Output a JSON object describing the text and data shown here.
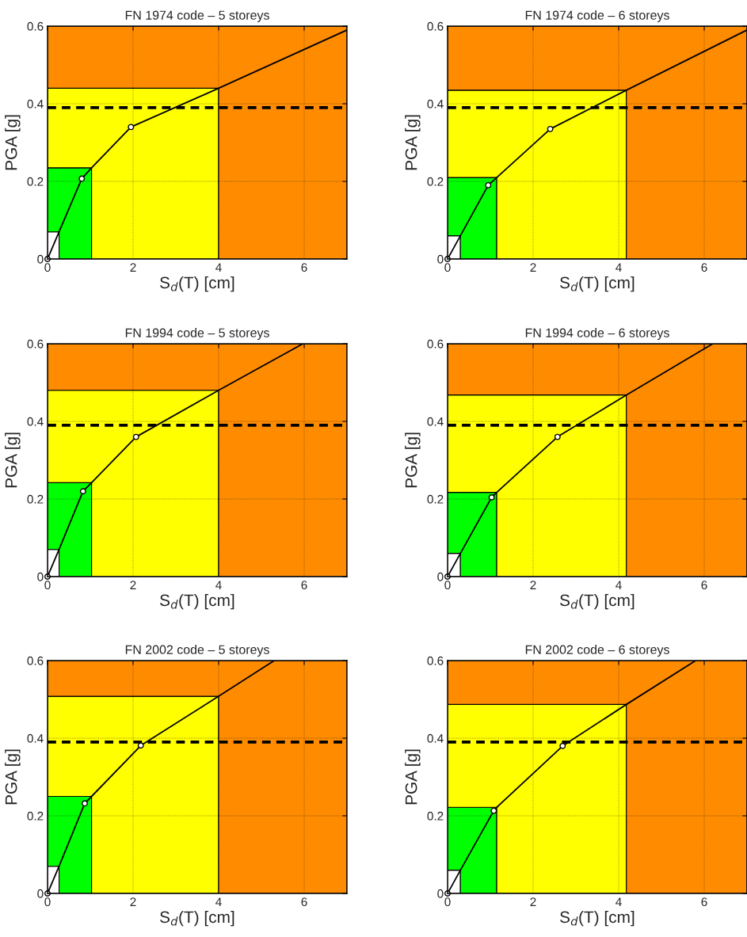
{
  "chart_data": [
    {
      "type": "area",
      "stacked": true,
      "title": "FN 1974 code – 5 storeys",
      "xlabel": "S$_{d}$(T) [cm]",
      "ylabel": "PGA [g]",
      "xlim": [
        0,
        7
      ],
      "ylim": [
        0,
        0.6
      ],
      "xticks": [
        0,
        2,
        4,
        6
      ],
      "yticks": [
        0,
        0.2,
        0.4,
        0.6
      ],
      "grid": true,
      "x": [
        0,
        0.27,
        0.27,
        1.03,
        1.03,
        4.0,
        4.0,
        7
      ],
      "series": [
        {
          "type": "area",
          "color": "#ffffff",
          "values": [
            0.07,
            0.07,
            0,
            0,
            0,
            0,
            0,
            0
          ]
        },
        {
          "type": "area",
          "color": "#00ff00",
          "values": [
            0.165,
            0.165,
            0.235,
            0.235,
            0,
            0,
            0,
            0
          ]
        },
        {
          "type": "area",
          "color": "#ffff00",
          "values": [
            0.205,
            0.205,
            0.205,
            0.205,
            0.44,
            0.44,
            0,
            0
          ]
        },
        {
          "type": "area",
          "color": "#ff8c00",
          "values": [
            0.16,
            0.16,
            0.16,
            0.16,
            0.16,
            0.16,
            0.6,
            0.6
          ]
        },
        {
          "type": "line",
          "color": "#000000",
          "marker": "none",
          "line_style": "solid",
          "x": [
            0,
            0.27,
            0.8,
            1.03,
            1.95,
            4.0,
            7
          ],
          "values": [
            0,
            0.07,
            0.207,
            0.235,
            0.34,
            0.44,
            0.59
          ]
        },
        {
          "type": "scatter",
          "color": "#ffffff",
          "marker": "circle",
          "x": [
            0,
            0.8,
            1.95
          ],
          "values": [
            0,
            0.207,
            0.34
          ]
        }
      ],
      "ref_lines": [
        {
          "axis": "y",
          "value": 0.39,
          "color": "#000000",
          "line_style": "dashed"
        }
      ]
    },
    {
      "type": "area",
      "stacked": true,
      "title": "FN 1974 code – 6 storeys",
      "xlabel": "S$_{d}$(T) [cm]",
      "ylabel": "PGA [g]",
      "xlim": [
        0,
        7
      ],
      "ylim": [
        0,
        0.6
      ],
      "xticks": [
        0,
        2,
        4,
        6
      ],
      "yticks": [
        0,
        0.2,
        0.4,
        0.6
      ],
      "grid": true,
      "x": [
        0,
        0.3,
        0.3,
        1.15,
        1.15,
        4.18,
        4.18,
        7
      ],
      "series": [
        {
          "type": "area",
          "color": "#ffffff",
          "values": [
            0.06,
            0.06,
            0,
            0,
            0,
            0,
            0,
            0
          ]
        },
        {
          "type": "area",
          "color": "#00ff00",
          "values": [
            0.15,
            0.15,
            0.21,
            0.21,
            0,
            0,
            0,
            0
          ]
        },
        {
          "type": "area",
          "color": "#ffff00",
          "values": [
            0.225,
            0.225,
            0.225,
            0.225,
            0.435,
            0.435,
            0,
            0
          ]
        },
        {
          "type": "area",
          "color": "#ff8c00",
          "values": [
            0.165,
            0.165,
            0.165,
            0.165,
            0.165,
            0.165,
            0.6,
            0.6
          ]
        },
        {
          "type": "line",
          "color": "#000000",
          "marker": "none",
          "line_style": "solid",
          "x": [
            0,
            0.3,
            0.95,
            1.15,
            2.4,
            4.18,
            7
          ],
          "values": [
            0,
            0.06,
            0.19,
            0.21,
            0.335,
            0.435,
            0.59
          ]
        },
        {
          "type": "scatter",
          "color": "#ffffff",
          "marker": "circle",
          "x": [
            0,
            0.95,
            2.4
          ],
          "values": [
            0,
            0.19,
            0.335
          ]
        }
      ],
      "ref_lines": [
        {
          "axis": "y",
          "value": 0.39,
          "color": "#000000",
          "line_style": "dashed"
        }
      ]
    },
    {
      "type": "area",
      "stacked": true,
      "title": "FN 1994 code – 5 storeys",
      "xlabel": "S$_{d}$(T) [cm]",
      "ylabel": "PGA [g]",
      "xlim": [
        0,
        7
      ],
      "ylim": [
        0,
        0.6
      ],
      "xticks": [
        0,
        2,
        4,
        6
      ],
      "yticks": [
        0,
        0.2,
        0.4,
        0.6
      ],
      "grid": true,
      "x": [
        0,
        0.27,
        0.27,
        1.03,
        1.03,
        4.0,
        4.0,
        7
      ],
      "series": [
        {
          "type": "area",
          "color": "#ffffff",
          "values": [
            0.07,
            0.07,
            0,
            0,
            0,
            0,
            0,
            0
          ]
        },
        {
          "type": "area",
          "color": "#00ff00",
          "values": [
            0.172,
            0.172,
            0.242,
            0.242,
            0,
            0,
            0,
            0
          ]
        },
        {
          "type": "area",
          "color": "#ffff00",
          "values": [
            0.238,
            0.238,
            0.238,
            0.238,
            0.48,
            0.48,
            0,
            0
          ]
        },
        {
          "type": "area",
          "color": "#ff8c00",
          "values": [
            0.12,
            0.12,
            0.12,
            0.12,
            0.12,
            0.12,
            0.6,
            0.6
          ]
        },
        {
          "type": "line",
          "color": "#000000",
          "marker": "none",
          "line_style": "solid",
          "x": [
            0,
            0.27,
            0.83,
            1.03,
            2.07,
            4.0,
            5.97
          ],
          "values": [
            0,
            0.07,
            0.22,
            0.242,
            0.36,
            0.48,
            0.6
          ]
        },
        {
          "type": "scatter",
          "color": "#ffffff",
          "marker": "circle",
          "x": [
            0,
            0.83,
            2.07
          ],
          "values": [
            0,
            0.22,
            0.36
          ]
        }
      ],
      "ref_lines": [
        {
          "axis": "y",
          "value": 0.39,
          "color": "#000000",
          "line_style": "dashed"
        }
      ]
    },
    {
      "type": "area",
      "stacked": true,
      "title": "FN 1994 code – 6 storeys",
      "xlabel": "S$_{d}$(T) [cm]",
      "ylabel": "PGA [g]",
      "xlim": [
        0,
        7
      ],
      "ylim": [
        0,
        0.6
      ],
      "xticks": [
        0,
        2,
        4,
        6
      ],
      "yticks": [
        0,
        0.2,
        0.4,
        0.6
      ],
      "grid": true,
      "x": [
        0,
        0.3,
        0.3,
        1.15,
        1.15,
        4.18,
        4.18,
        7
      ],
      "series": [
        {
          "type": "area",
          "color": "#ffffff",
          "values": [
            0.06,
            0.06,
            0,
            0,
            0,
            0,
            0,
            0
          ]
        },
        {
          "type": "area",
          "color": "#00ff00",
          "values": [
            0.157,
            0.157,
            0.217,
            0.217,
            0,
            0,
            0,
            0
          ]
        },
        {
          "type": "area",
          "color": "#ffff00",
          "values": [
            0.251,
            0.251,
            0.251,
            0.251,
            0.468,
            0.468,
            0,
            0
          ]
        },
        {
          "type": "area",
          "color": "#ff8c00",
          "values": [
            0.132,
            0.132,
            0.132,
            0.132,
            0.132,
            0.132,
            0.6,
            0.6
          ]
        },
        {
          "type": "line",
          "color": "#000000",
          "marker": "none",
          "line_style": "solid",
          "x": [
            0,
            0.3,
            1.03,
            1.15,
            2.57,
            4.18,
            6.2
          ],
          "values": [
            0,
            0.06,
            0.204,
            0.217,
            0.36,
            0.468,
            0.6
          ]
        },
        {
          "type": "scatter",
          "color": "#ffffff",
          "marker": "circle",
          "x": [
            0,
            1.03,
            2.57
          ],
          "values": [
            0,
            0.204,
            0.36
          ]
        }
      ],
      "ref_lines": [
        {
          "axis": "y",
          "value": 0.39,
          "color": "#000000",
          "line_style": "dashed"
        }
      ]
    },
    {
      "type": "area",
      "stacked": true,
      "title": "FN 2002 code – 5 storeys",
      "xlabel": "S$_{d}$(T) [cm]",
      "ylabel": "PGA [g]",
      "xlim": [
        0,
        7
      ],
      "ylim": [
        0,
        0.6
      ],
      "xticks": [
        0,
        2,
        4,
        6
      ],
      "yticks": [
        0,
        0.2,
        0.4,
        0.6
      ],
      "grid": true,
      "x": [
        0,
        0.27,
        0.27,
        1.03,
        1.03,
        4.0,
        4.0,
        7
      ],
      "series": [
        {
          "type": "area",
          "color": "#ffffff",
          "values": [
            0.07,
            0.07,
            0,
            0,
            0,
            0,
            0,
            0
          ]
        },
        {
          "type": "area",
          "color": "#00ff00",
          "values": [
            0.18,
            0.18,
            0.25,
            0.25,
            0,
            0,
            0,
            0
          ]
        },
        {
          "type": "area",
          "color": "#ffff00",
          "values": [
            0.258,
            0.258,
            0.258,
            0.258,
            0.508,
            0.508,
            0,
            0
          ]
        },
        {
          "type": "area",
          "color": "#ff8c00",
          "values": [
            0.092,
            0.092,
            0.092,
            0.092,
            0.092,
            0.092,
            0.6,
            0.6
          ]
        },
        {
          "type": "line",
          "color": "#000000",
          "marker": "none",
          "line_style": "solid",
          "x": [
            0,
            0.27,
            0.87,
            1.03,
            2.18,
            4.0,
            5.3
          ],
          "values": [
            0,
            0.07,
            0.232,
            0.25,
            0.381,
            0.508,
            0.6
          ]
        },
        {
          "type": "scatter",
          "color": "#ffffff",
          "marker": "circle",
          "x": [
            0,
            0.87,
            2.18
          ],
          "values": [
            0,
            0.232,
            0.381
          ]
        }
      ],
      "ref_lines": [
        {
          "axis": "y",
          "value": 0.39,
          "color": "#000000",
          "line_style": "dashed"
        }
      ]
    },
    {
      "type": "area",
      "stacked": true,
      "title": "FN 2002 code – 6 storeys",
      "xlabel": "S$_{d}$(T) [cm]",
      "ylabel": "PGA [g]",
      "xlim": [
        0,
        7
      ],
      "ylim": [
        0,
        0.6
      ],
      "xticks": [
        0,
        2,
        4,
        6
      ],
      "yticks": [
        0,
        0.2,
        0.4,
        0.6
      ],
      "grid": true,
      "x": [
        0,
        0.3,
        0.3,
        1.15,
        1.15,
        4.18,
        4.18,
        7
      ],
      "series": [
        {
          "type": "area",
          "color": "#ffffff",
          "values": [
            0.06,
            0.06,
            0,
            0,
            0,
            0,
            0,
            0
          ]
        },
        {
          "type": "area",
          "color": "#00ff00",
          "values": [
            0.162,
            0.162,
            0.222,
            0.222,
            0,
            0,
            0,
            0
          ]
        },
        {
          "type": "area",
          "color": "#ffff00",
          "values": [
            0.265,
            0.265,
            0.265,
            0.265,
            0.487,
            0.487,
            0,
            0
          ]
        },
        {
          "type": "area",
          "color": "#ff8c00",
          "values": [
            0.113,
            0.113,
            0.113,
            0.113,
            0.113,
            0.113,
            0.6,
            0.6
          ]
        },
        {
          "type": "line",
          "color": "#000000",
          "marker": "none",
          "line_style": "solid",
          "x": [
            0,
            0.3,
            1.08,
            1.15,
            2.69,
            4.18,
            5.8
          ],
          "values": [
            0,
            0.06,
            0.213,
            0.222,
            0.38,
            0.487,
            0.6
          ]
        },
        {
          "type": "scatter",
          "color": "#ffffff",
          "marker": "circle",
          "x": [
            0,
            1.08,
            2.69
          ],
          "values": [
            0,
            0.213,
            0.38
          ]
        }
      ],
      "ref_lines": [
        {
          "axis": "y",
          "value": 0.39,
          "color": "#000000",
          "line_style": "dashed"
        }
      ]
    }
  ]
}
